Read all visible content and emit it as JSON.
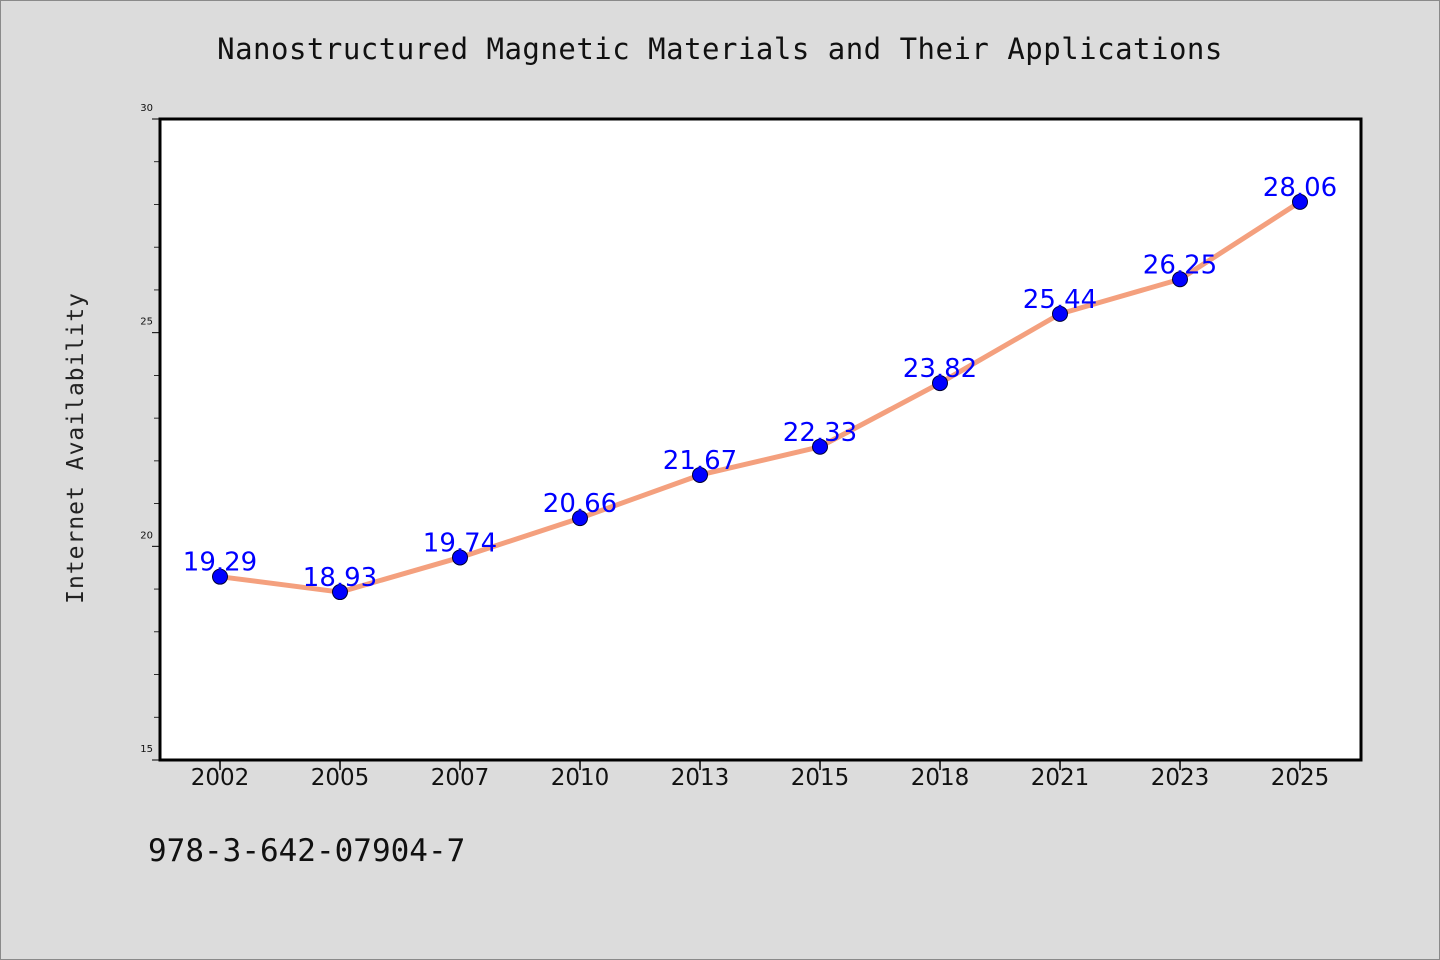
{
  "footer_text": "978-3-642-07904-7",
  "colors": {
    "background": "#dcdcdc",
    "plot_background": "#ffffff",
    "line": "#f4a07e",
    "marker": "#0000ff",
    "data_label": "#0000ff"
  },
  "chart_data": {
    "type": "line",
    "title": "Nanostructured Magnetic Materials and Their Applications",
    "xlabel": "",
    "ylabel": "Internet Availability",
    "categories": [
      "2002",
      "2005",
      "2007",
      "2010",
      "2013",
      "2015",
      "2018",
      "2021",
      "2023",
      "2025"
    ],
    "series": [
      {
        "values": [
          19.29,
          18.93,
          19.74,
          20.66,
          21.67,
          22.33,
          23.82,
          25.44,
          26.25,
          28.06
        ],
        "labels": [
          "19.29",
          "18.93",
          "19.74",
          "20.66",
          "21.67",
          "22.33",
          "23.82",
          "25.44",
          "26.25",
          "28.06"
        ]
      }
    ],
    "ylim": [
      15,
      30
    ],
    "yticks": [
      "15",
      "20",
      "25",
      "30"
    ],
    "grid": false,
    "legend": "none"
  }
}
